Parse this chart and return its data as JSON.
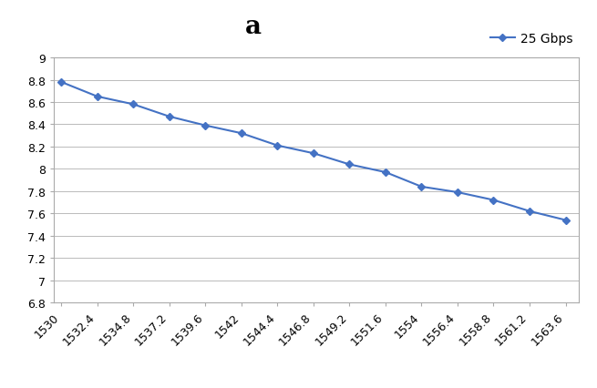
{
  "x_values": [
    1530,
    1532.4,
    1534.8,
    1537.2,
    1539.6,
    1542,
    1544.4,
    1546.8,
    1549.2,
    1551.6,
    1554,
    1556.4,
    1558.8,
    1561.2,
    1563.6
  ],
  "y_values": [
    8.78,
    8.65,
    8.58,
    8.47,
    8.39,
    8.32,
    8.21,
    8.14,
    8.04,
    7.97,
    7.84,
    7.79,
    7.72,
    7.62,
    7.54
  ],
  "x_ticks": [
    1530,
    1532.4,
    1534.8,
    1537.2,
    1539.6,
    1542,
    1544.4,
    1546.8,
    1549.2,
    1551.6,
    1554,
    1556.4,
    1558.8,
    1561.2,
    1563.6
  ],
  "y_ticks": [
    6.8,
    7.0,
    7.2,
    7.4,
    7.6,
    7.8,
    8.0,
    8.2,
    8.4,
    8.6,
    8.8,
    9.0
  ],
  "ylim": [
    6.8,
    9.0
  ],
  "xlim": [
    1529.5,
    1564.5
  ],
  "line_color": "#4472C4",
  "marker": "D",
  "marker_size": 4,
  "line_width": 1.5,
  "title": "a",
  "legend_label": "25 Gbps",
  "title_fontsize": 20,
  "tick_fontsize": 9,
  "legend_fontsize": 10,
  "background_color": "#ffffff",
  "outer_background": "#f0f0f0",
  "grid_color": "#b0b0b0",
  "grid_linestyle": "-",
  "grid_linewidth": 0.6,
  "spine_color": "#aaaaaa"
}
